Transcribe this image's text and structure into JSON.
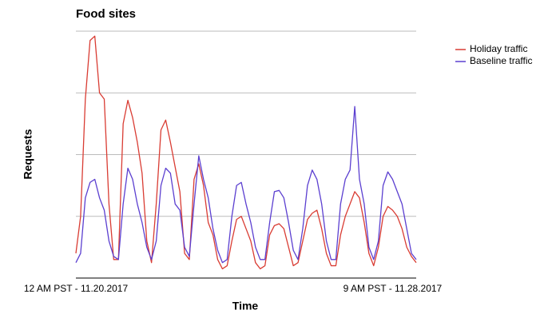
{
  "chart_data": {
    "type": "line",
    "title": "Food sites",
    "x_label": "Time",
    "y_label": "Requests",
    "categories": [
      "12 AM PST - 11.20.2017",
      null,
      null,
      null,
      null,
      null,
      null,
      null,
      null,
      null,
      null,
      null,
      null,
      null,
      null,
      null,
      null,
      null,
      null,
      null,
      null,
      null,
      null,
      null,
      null,
      null,
      null,
      null,
      null,
      null,
      null,
      null,
      null,
      null,
      null,
      null,
      null,
      null,
      null,
      null,
      null,
      null,
      null,
      null,
      null,
      null,
      null,
      null,
      null,
      null,
      null,
      null,
      null,
      null,
      null,
      null,
      null,
      null,
      null,
      null,
      null,
      null,
      null,
      null,
      null,
      null,
      null,
      "9 AM PST - 11.28.2017",
      null,
      null,
      null,
      null,
      null
    ],
    "series": [
      {
        "name": "Holiday traffic",
        "color": "#d93c33",
        "values": [
          0.4,
          1.0,
          2.9,
          3.85,
          3.92,
          3.0,
          2.9,
          1.2,
          0.3,
          0.3,
          2.5,
          2.88,
          2.6,
          2.2,
          1.7,
          0.6,
          0.25,
          1.2,
          2.4,
          2.56,
          2.2,
          1.8,
          1.4,
          0.4,
          0.3,
          1.6,
          1.85,
          1.5,
          0.9,
          0.7,
          0.3,
          0.15,
          0.2,
          0.6,
          0.95,
          1.0,
          0.8,
          0.6,
          0.25,
          0.15,
          0.2,
          0.7,
          0.85,
          0.88,
          0.8,
          0.5,
          0.2,
          0.25,
          0.6,
          0.95,
          1.05,
          1.1,
          0.8,
          0.4,
          0.2,
          0.2,
          0.7,
          1.0,
          1.2,
          1.4,
          1.3,
          0.9,
          0.4,
          0.2,
          0.5,
          1.0,
          1.16,
          1.1,
          1.0,
          0.8,
          0.5,
          0.35,
          0.25
        ]
      },
      {
        "name": "Baseline traffic",
        "color": "#5b3fd0",
        "values": [
          0.25,
          0.4,
          1.3,
          1.55,
          1.6,
          1.3,
          1.1,
          0.6,
          0.35,
          0.3,
          1.2,
          1.78,
          1.6,
          1.2,
          0.9,
          0.5,
          0.3,
          0.6,
          1.5,
          1.78,
          1.7,
          1.2,
          1.1,
          0.5,
          0.35,
          1.2,
          1.98,
          1.6,
          1.3,
          0.8,
          0.45,
          0.25,
          0.3,
          1.0,
          1.5,
          1.55,
          1.2,
          0.9,
          0.5,
          0.3,
          0.3,
          0.9,
          1.4,
          1.42,
          1.3,
          0.9,
          0.45,
          0.3,
          0.8,
          1.5,
          1.75,
          1.6,
          1.2,
          0.6,
          0.3,
          0.3,
          1.2,
          1.6,
          1.75,
          2.78,
          1.6,
          1.2,
          0.5,
          0.3,
          0.6,
          1.5,
          1.72,
          1.6,
          1.4,
          1.2,
          0.8,
          0.4,
          0.3
        ]
      }
    ],
    "ylim": [
      0,
      4
    ],
    "yticks": [
      0,
      1,
      2,
      3,
      4
    ],
    "grid": true,
    "legend": "top-right"
  }
}
